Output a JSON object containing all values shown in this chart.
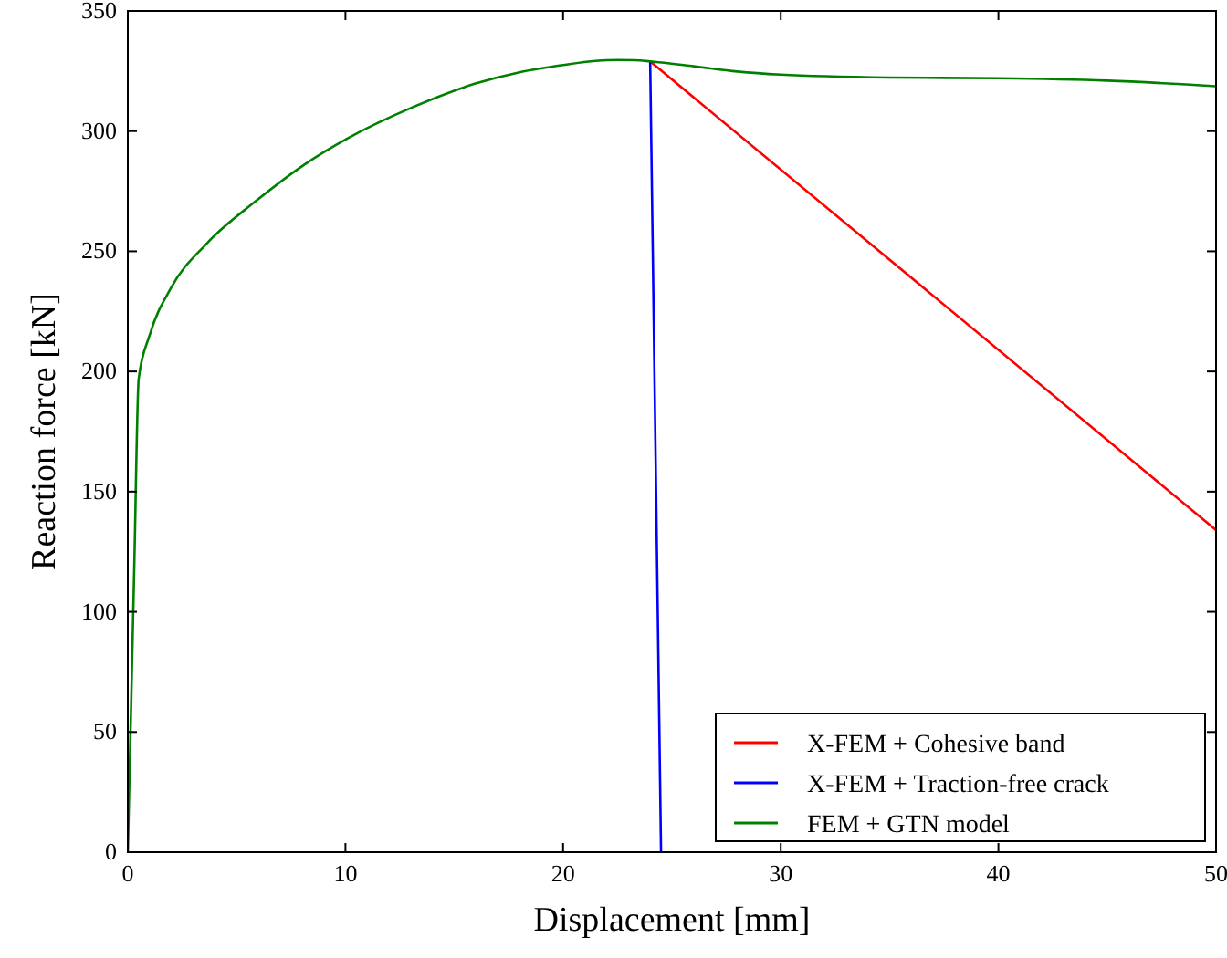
{
  "chart_data": {
    "type": "line",
    "xlabel": "Displacement [mm]",
    "ylabel": "Reaction force [kN]",
    "xlim": [
      0,
      50
    ],
    "ylim": [
      0,
      350
    ],
    "xticks": [
      0,
      10,
      20,
      30,
      40,
      50
    ],
    "yticks": [
      0,
      50,
      100,
      150,
      200,
      250,
      300,
      350
    ],
    "grid": false,
    "legend": "bottom right",
    "series": [
      {
        "name": "X-FEM + Cohesive band",
        "color": "#ff0000",
        "x": [
          24,
          50
        ],
        "values": [
          329,
          134
        ]
      },
      {
        "name": "X-FEM + Traction-free crack",
        "color": "#0000ff",
        "x": [
          24,
          24.5
        ],
        "values": [
          329,
          0
        ]
      },
      {
        "name": "FEM + GTN model",
        "color": "#008000",
        "x": [
          0,
          0.3,
          0.5,
          1,
          2,
          3.6,
          5.9,
          8.1,
          10.1,
          13.1,
          15.9,
          18,
          20,
          21.5,
          22.5,
          23.3,
          24,
          26,
          28,
          30,
          35,
          40,
          45,
          50
        ],
        "values": [
          0,
          120,
          197,
          215,
          235,
          253,
          271,
          286,
          297,
          310,
          319.6,
          324.5,
          327.5,
          329.2,
          329.6,
          329.5,
          329,
          327,
          324.8,
          323.5,
          322.3,
          322,
          321,
          318.7
        ]
      }
    ]
  }
}
